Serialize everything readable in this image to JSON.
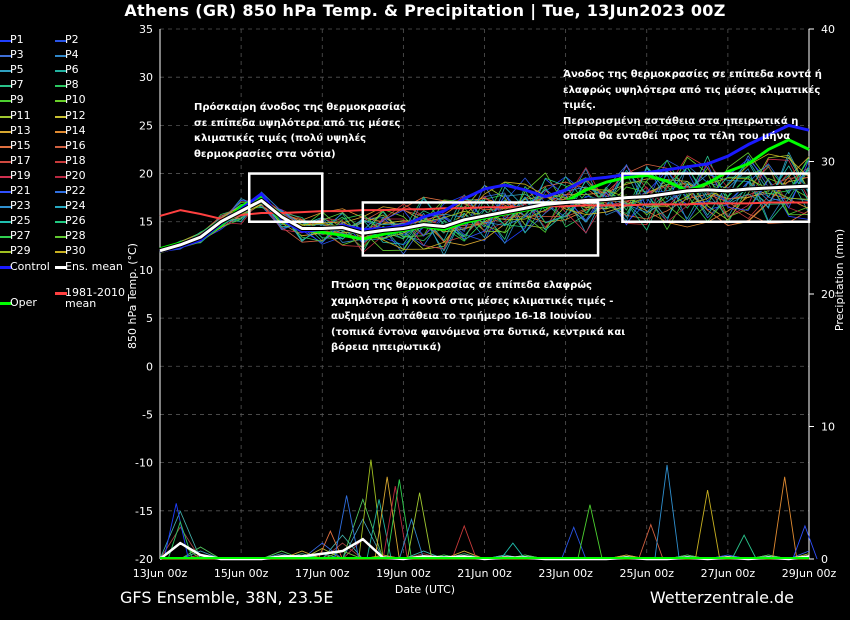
{
  "title": "Athens  (GR)  850 hPa Temp. & Precipitation | Tue, 13Jun2023 00Z",
  "footer_left": "GFS Ensemble, 38N, 23.5E",
  "footer_right": "Wetterzentrale.de",
  "legend": {
    "members": [
      {
        "label": "P1",
        "color": "#1f3fff"
      },
      {
        "label": "P2",
        "color": "#2a55e8"
      },
      {
        "label": "P3",
        "color": "#3f6fd8"
      },
      {
        "label": "P4",
        "color": "#2f86c8"
      },
      {
        "label": "P5",
        "color": "#2fa0c0"
      },
      {
        "label": "P6",
        "color": "#22b2a0"
      },
      {
        "label": "P7",
        "color": "#29c28a"
      },
      {
        "label": "P8",
        "color": "#2bc860"
      },
      {
        "label": "P9",
        "color": "#4cd030"
      },
      {
        "label": "P10",
        "color": "#6ad02a"
      },
      {
        "label": "P11",
        "color": "#a0c830"
      },
      {
        "label": "P12",
        "color": "#c8c030"
      },
      {
        "label": "P13",
        "color": "#d8a830"
      },
      {
        "label": "P14",
        "color": "#e08a30"
      },
      {
        "label": "P15",
        "color": "#e07040"
      },
      {
        "label": "P16",
        "color": "#d06040"
      },
      {
        "label": "P17",
        "color": "#d04a40"
      },
      {
        "label": "P18",
        "color": "#c83a3a"
      },
      {
        "label": "P19",
        "color": "#d03050"
      },
      {
        "label": "P20",
        "color": "#b82840"
      },
      {
        "label": "P21",
        "color": "#3050ff"
      },
      {
        "label": "P22",
        "color": "#2f6fe0"
      },
      {
        "label": "P23",
        "color": "#2f90d0"
      },
      {
        "label": "P24",
        "color": "#26a8c0"
      },
      {
        "label": "P25",
        "color": "#20c0b0"
      },
      {
        "label": "P26",
        "color": "#20c880"
      },
      {
        "label": "P27",
        "color": "#30d050"
      },
      {
        "label": "P28",
        "color": "#60c830"
      },
      {
        "label": "P29",
        "color": "#a0c020"
      },
      {
        "label": "P30",
        "color": "#c8b020"
      }
    ],
    "control": {
      "label": "Control",
      "color": "#1a1aff"
    },
    "ens_mean": {
      "label": "Ens. mean",
      "color": "#ffffff"
    },
    "oper": {
      "label": "Oper",
      "color": "#00ff00"
    },
    "clim": {
      "label": "1981-2010\nmean",
      "color": "#ff4040"
    }
  },
  "annotations": [
    "Πρόσκαιρη άνοδος της θερμοκρασίας\nσε επίπεδα υψηλότερα από τις μέσες\nκλιματικές τιμές (πολύ υψηλές\nθερμοκρασίες στα νότια)",
    "Πτώση της θερμοκρασίας σε επίπεδα ελαφρώς\nχαμηλότερα ή κοντά στις μέσες κλιματικές τιμές -\nαυξημένη αστάθεια το τριήμερο 16-18 Ιουνίου\n(τοπικά έντονα φαινόμενα στα δυτικά, κεντρικά και\nβόρεια ηπειρωτικά)",
    "Άνοδος της θερμοκρασίες σε επίπεδα κοντά ή\nελαφρώς υψηλότερα από τις μέσες κλιματικές\nτιμές.\nΠεριορισμένη αστάθεια στα ηπειρωτικά η\nοποία θα ενταθεί προς τα τέλη του μήνα"
  ],
  "chart_data": {
    "type": "line",
    "xlabel": "Date (UTC)",
    "ylabel": "850 hPa Temp. (°C)",
    "y2label": "Precipitation (mm)",
    "ylim": [
      -20,
      35
    ],
    "y2lim": [
      0,
      40
    ],
    "yticks": [
      -20,
      -15,
      -10,
      -5,
      0,
      5,
      10,
      15,
      20,
      25,
      30,
      35
    ],
    "y2ticks": [
      0,
      10,
      20,
      30,
      40
    ],
    "x_categories": [
      "13Jun 00z",
      "15Jun 00z",
      "17Jun 00z",
      "19Jun 00z",
      "21Jun 00z",
      "23Jun 00z",
      "25Jun 00z",
      "27Jun 00z",
      "29Jun 00z"
    ],
    "grid": true,
    "x_days": [
      0,
      0.5,
      1,
      1.5,
      2,
      2.5,
      3,
      3.5,
      4,
      4.5,
      5,
      5.5,
      6,
      6.5,
      7,
      7.5,
      8,
      8.5,
      9,
      9.5,
      10,
      10.5,
      11,
      11.5,
      12,
      12.5,
      13,
      13.5,
      14,
      14.5,
      15,
      15.5,
      16
    ],
    "ens_mean": [
      12,
      12.6,
      13.4,
      15,
      16.1,
      17.2,
      15.5,
      14.3,
      14.3,
      14.4,
      13.8,
      14.1,
      14.3,
      14.7,
      14.5,
      15.2,
      15.6,
      16,
      16.4,
      16.8,
      17,
      17.2,
      17.3,
      17.5,
      17.6,
      17.9,
      18.2,
      18.3,
      18.2,
      18.4,
      18.5,
      18.6,
      18.7
    ],
    "control": [
      11.9,
      12.4,
      13.1,
      14.8,
      16.3,
      17.9,
      15.2,
      14,
      14.2,
      14.6,
      14.2,
      14.3,
      14.6,
      15.5,
      16.1,
      17.4,
      18.4,
      18.8,
      18.3,
      17.6,
      18.3,
      19.4,
      19.6,
      19.9,
      20.1,
      20.4,
      20.7,
      21,
      21.8,
      23,
      24,
      25,
      24.5
    ],
    "oper": [
      12.2,
      12.8,
      13.1,
      14.6,
      16.6,
      17.6,
      15.1,
      14.2,
      13.9,
      13.6,
      13.2,
      13.7,
      14.1,
      14.5,
      14.2,
      14.9,
      15.4,
      15.8,
      16.2,
      16.6,
      17.1,
      18.3,
      19.1,
      19.6,
      19.8,
      19.2,
      18.2,
      19,
      20.2,
      21,
      22.5,
      23.5,
      22.5
    ],
    "clim_mean": [
      15.6,
      16.2,
      15.8,
      15.3,
      15.7,
      15.9,
      15.9,
      16,
      16.1,
      16.1,
      16.2,
      16.2,
      16.3,
      16.3,
      16.4,
      16.4,
      16.5,
      16.5,
      16.5,
      16.6,
      16.6,
      16.7,
      16.7,
      16.7,
      16.8,
      16.8,
      16.8,
      16.9,
      16.9,
      16.9,
      17,
      17,
      17
    ],
    "ens_spread": [
      0.3,
      0.5,
      0.7,
      1,
      1.5,
      1.8,
      1.5,
      1.6,
      2,
      2.2,
      2.5,
      2.8,
      3,
      3.2,
      3.4,
      3.5,
      3.6,
      3.7,
      3.8,
      3.9,
      3.9,
      4,
      4,
      4.1,
      4.1,
      4.2,
      4.2,
      4.2,
      4.3,
      4.3,
      4.3,
      4.3,
      4.4
    ],
    "precip_mean": [
      0,
      1.2,
      0.3,
      0,
      0,
      0,
      0.2,
      0.2,
      0.4,
      0.6,
      1.5,
      0.1,
      0,
      0.2,
      0.1,
      0.2,
      0,
      0.1,
      0.1,
      0,
      0,
      0,
      0,
      0.1,
      0,
      0,
      0.1,
      0,
      0.1,
      0,
      0.1,
      0,
      0.2
    ],
    "precip_peaks": [
      {
        "day": 0.4,
        "mm": 4.2
      },
      {
        "day": 0.5,
        "mm": 2.8
      },
      {
        "day": 4.2,
        "mm": 2.1
      },
      {
        "day": 4.6,
        "mm": 4.8
      },
      {
        "day": 5.2,
        "mm": 7.5
      },
      {
        "day": 5.4,
        "mm": 4.5
      },
      {
        "day": 5.6,
        "mm": 6.2
      },
      {
        "day": 5.8,
        "mm": 5.5
      },
      {
        "day": 5.9,
        "mm": 6
      },
      {
        "day": 6.2,
        "mm": 3
      },
      {
        "day": 6.4,
        "mm": 5
      },
      {
        "day": 7.5,
        "mm": 2.5
      },
      {
        "day": 8.7,
        "mm": 1.2
      },
      {
        "day": 10.2,
        "mm": 2.4
      },
      {
        "day": 10.6,
        "mm": 4.1
      },
      {
        "day": 12.1,
        "mm": 2.6
      },
      {
        "day": 12.5,
        "mm": 7.1
      },
      {
        "day": 13.5,
        "mm": 5.2
      },
      {
        "day": 14.4,
        "mm": 1.8
      },
      {
        "day": 15.4,
        "mm": 6.2
      },
      {
        "day": 15.9,
        "mm": 2.5
      }
    ],
    "boxes": [
      {
        "x0": 2.2,
        "x1": 4.0,
        "y0": 15,
        "y1": 20
      },
      {
        "x0": 5.0,
        "x1": 10.8,
        "y0": 11.5,
        "y1": 17
      },
      {
        "x0": 11.4,
        "x1": 16.0,
        "y0": 15,
        "y1": 20
      }
    ]
  }
}
